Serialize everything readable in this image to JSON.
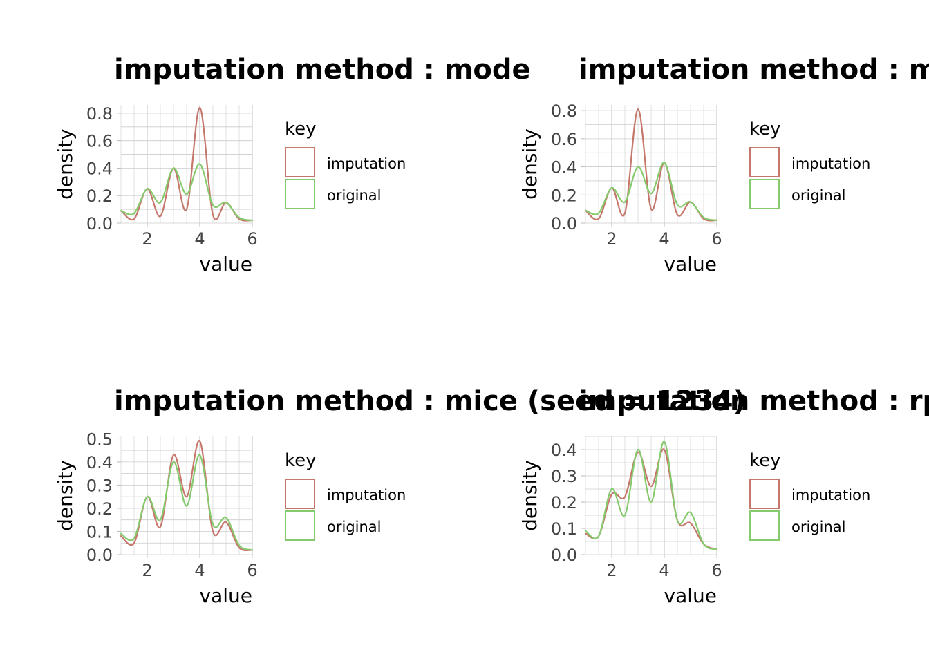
{
  "colors": {
    "imputation": "#C5776B",
    "original": "#85CA6C",
    "grid": "#CCCCCC"
  },
  "chart_data": [
    {
      "type": "line",
      "title": "imputation method : mode",
      "xlabel": "value",
      "ylabel": "density",
      "xlim": [
        1,
        6
      ],
      "ylim": [
        0,
        0.86
      ],
      "xticks": [
        "2",
        "4",
        "6"
      ],
      "yticks": [
        "0.0",
        "0.2",
        "0.4",
        "0.6",
        "0.8"
      ],
      "grid": true,
      "legend": {
        "title": "key",
        "position": "right"
      },
      "x": [
        1,
        1.5,
        2,
        2.5,
        3,
        3.5,
        4,
        4.5,
        5,
        5.5,
        6
      ],
      "series": [
        {
          "name": "imputation",
          "values": [
            0.09,
            0.03,
            0.25,
            0.05,
            0.4,
            0.1,
            0.84,
            0.06,
            0.15,
            0.03,
            0.02
          ]
        },
        {
          "name": "original",
          "values": [
            0.09,
            0.07,
            0.25,
            0.15,
            0.4,
            0.21,
            0.43,
            0.13,
            0.15,
            0.04,
            0.02
          ]
        }
      ]
    },
    {
      "type": "line",
      "title": "imputation method : median",
      "xlabel": "value",
      "ylabel": "density",
      "xlim": [
        1,
        6
      ],
      "ylim": [
        0,
        0.84
      ],
      "xticks": [
        "2",
        "4",
        "6"
      ],
      "yticks": [
        "0.0",
        "0.2",
        "0.4",
        "0.6",
        "0.8"
      ],
      "grid": true,
      "legend": {
        "title": "key",
        "position": "right"
      },
      "x": [
        1,
        1.5,
        2,
        2.5,
        3,
        3.5,
        4,
        4.5,
        5,
        5.5,
        6
      ],
      "series": [
        {
          "name": "imputation",
          "values": [
            0.09,
            0.03,
            0.25,
            0.07,
            0.81,
            0.1,
            0.43,
            0.06,
            0.15,
            0.03,
            0.02
          ]
        },
        {
          "name": "original",
          "values": [
            0.09,
            0.07,
            0.25,
            0.15,
            0.4,
            0.21,
            0.43,
            0.13,
            0.15,
            0.04,
            0.02
          ]
        }
      ]
    },
    {
      "type": "line",
      "title": "imputation method : mice (seed = 1234)",
      "xlabel": "value",
      "ylabel": "density",
      "xlim": [
        1,
        6
      ],
      "ylim": [
        0,
        0.51
      ],
      "xticks": [
        "2",
        "4",
        "6"
      ],
      "yticks": [
        "0.0",
        "0.1",
        "0.2",
        "0.3",
        "0.4",
        "0.5"
      ],
      "grid": true,
      "legend": {
        "title": "key",
        "position": "right"
      },
      "x": [
        1,
        1.5,
        2,
        2.5,
        3,
        3.5,
        4,
        4.5,
        5,
        5.5,
        6
      ],
      "series": [
        {
          "name": "imputation",
          "values": [
            0.08,
            0.05,
            0.25,
            0.12,
            0.43,
            0.25,
            0.49,
            0.1,
            0.14,
            0.03,
            0.02
          ]
        },
        {
          "name": "original",
          "values": [
            0.09,
            0.07,
            0.25,
            0.15,
            0.4,
            0.21,
            0.43,
            0.13,
            0.16,
            0.04,
            0.02
          ]
        }
      ]
    },
    {
      "type": "line",
      "title": "imputation method : rpart",
      "xlabel": "value",
      "ylabel": "density",
      "xlim": [
        1,
        6
      ],
      "ylim": [
        0,
        0.45
      ],
      "xticks": [
        "2",
        "4",
        "6"
      ],
      "yticks": [
        "0.0",
        "0.1",
        "0.2",
        "0.3",
        "0.4"
      ],
      "grid": true,
      "legend": {
        "title": "key",
        "position": "right"
      },
      "x": [
        1,
        1.5,
        2,
        2.5,
        3,
        3.5,
        4,
        4.5,
        5,
        5.5,
        6
      ],
      "series": [
        {
          "name": "imputation",
          "values": [
            0.08,
            0.07,
            0.23,
            0.22,
            0.39,
            0.26,
            0.4,
            0.13,
            0.12,
            0.04,
            0.02
          ]
        },
        {
          "name": "original",
          "values": [
            0.09,
            0.07,
            0.25,
            0.15,
            0.4,
            0.2,
            0.43,
            0.13,
            0.16,
            0.04,
            0.02
          ]
        }
      ]
    }
  ]
}
